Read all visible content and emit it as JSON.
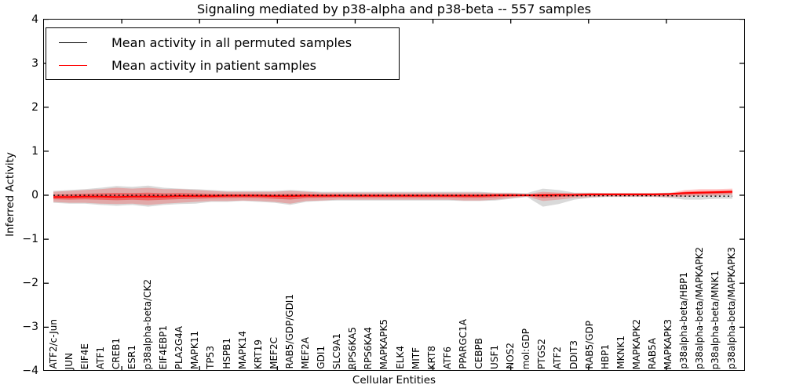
{
  "figure": {
    "background": "#ffffff",
    "axis_color": "#000000"
  },
  "legend": {
    "items": [
      {
        "label": "Mean activity in all permuted samples",
        "line_color": "#000000"
      },
      {
        "label": "Mean activity in patient samples",
        "line_color": "#ff0000"
      }
    ]
  },
  "chart_data": {
    "type": "line",
    "title": "Signaling mediated by p38-alpha and p38-beta -- 557 samples",
    "xlabel": "Cellular Entities",
    "ylabel": "Inferred Activity",
    "ylim": [
      -4,
      4
    ],
    "grid": false,
    "legend_position": "upper left",
    "yticks": [
      {
        "value": 4,
        "label": "4"
      },
      {
        "value": 3,
        "label": "3"
      },
      {
        "value": 2,
        "label": "2"
      },
      {
        "value": 1,
        "label": "1"
      },
      {
        "value": 0,
        "label": "0"
      },
      {
        "value": -1,
        "label": "−1"
      },
      {
        "value": -2,
        "label": "−2"
      },
      {
        "value": -3,
        "label": "−3"
      },
      {
        "value": -4,
        "label": "−4"
      }
    ],
    "top_axis_tick_count": 8,
    "categories": [
      "ATF2/c-Jun",
      "JUN",
      "EIF4E",
      "ATF1",
      "CREB1",
      "ESR1",
      "p38alpha-beta/CK2",
      "EIF4EBP1",
      "PLA2G4A",
      "MAPK11",
      "TP53",
      "HSPB1",
      "MAPK14",
      "KRT19",
      "MEF2C",
      "RAB5/GDP/GDI1",
      "MEF2A",
      "GDI1",
      "SLC9A1",
      "RPS6KA5",
      "RPS6KA4",
      "MAPKAPK5",
      "ELK4",
      "MITF",
      "KRT8",
      "ATF6",
      "PPARGC1A",
      "CEBPB",
      "USF1",
      "NOS2",
      "mol:GDP",
      "PTGS2",
      "ATF2",
      "DDIT3",
      "RAB5/GDP",
      "HBP1",
      "MKNK1",
      "MAPKAPK2",
      "RAB5A",
      "MAPKAPK3",
      "p38alpha-beta/HBP1",
      "p38alpha-beta/MAPKAPK2",
      "p38alpha-beta/MNK1",
      "p38alpha-beta/MAPKAPK3"
    ],
    "series": [
      {
        "name": "Mean activity in all permuted samples",
        "color": "#000000",
        "line_style": "dotted",
        "values": [
          -0.01,
          -0.01,
          -0.01,
          -0.01,
          -0.01,
          -0.01,
          -0.01,
          -0.01,
          -0.01,
          -0.01,
          -0.01,
          -0.01,
          -0.01,
          -0.01,
          -0.01,
          -0.01,
          -0.01,
          -0.01,
          -0.01,
          -0.01,
          -0.01,
          -0.01,
          -0.01,
          -0.01,
          -0.01,
          -0.01,
          -0.01,
          -0.01,
          -0.01,
          -0.01,
          -0.01,
          -0.02,
          -0.02,
          -0.02,
          -0.02,
          -0.02,
          -0.02,
          -0.02,
          -0.02,
          -0.02,
          -0.03,
          -0.03,
          -0.03,
          -0.03
        ]
      },
      {
        "name": "Mean activity in patient samples",
        "color": "#ff0000",
        "line_style": "solid",
        "values": [
          -0.05,
          -0.05,
          -0.04,
          -0.04,
          -0.05,
          -0.04,
          -0.04,
          -0.04,
          -0.03,
          -0.03,
          -0.03,
          -0.02,
          -0.02,
          -0.02,
          -0.03,
          -0.03,
          -0.02,
          -0.02,
          -0.02,
          -0.02,
          -0.02,
          -0.02,
          -0.02,
          -0.02,
          -0.02,
          -0.02,
          -0.02,
          -0.02,
          -0.01,
          -0.01,
          -0.01,
          -0.01,
          0.0,
          0.0,
          0.01,
          0.01,
          0.01,
          0.01,
          0.01,
          0.02,
          0.04,
          0.05,
          0.06,
          0.07
        ]
      }
    ],
    "bands": [
      {
        "name": "permuted-samples-std-envelope",
        "color": "#808080",
        "opacity": 0.3,
        "hi": [
          0.09,
          0.11,
          0.13,
          0.16,
          0.2,
          0.18,
          0.21,
          0.16,
          0.14,
          0.13,
          0.11,
          0.09,
          0.09,
          0.09,
          0.09,
          0.11,
          0.09,
          0.07,
          0.07,
          0.07,
          0.07,
          0.07,
          0.07,
          0.07,
          0.07,
          0.07,
          0.07,
          0.07,
          0.05,
          0.05,
          0.04,
          0.14,
          0.11,
          0.05,
          0.05,
          0.04,
          0.04,
          0.04,
          0.04,
          0.05,
          0.05,
          0.07,
          0.07,
          0.09
        ],
        "lo": [
          -0.18,
          -0.2,
          -0.2,
          -0.23,
          -0.25,
          -0.23,
          -0.27,
          -0.23,
          -0.21,
          -0.2,
          -0.16,
          -0.16,
          -0.14,
          -0.16,
          -0.18,
          -0.23,
          -0.16,
          -0.14,
          -0.13,
          -0.13,
          -0.13,
          -0.13,
          -0.13,
          -0.13,
          -0.13,
          -0.13,
          -0.14,
          -0.14,
          -0.13,
          -0.09,
          -0.05,
          -0.27,
          -0.21,
          -0.11,
          -0.07,
          -0.05,
          -0.05,
          -0.05,
          -0.05,
          -0.07,
          -0.11,
          -0.11,
          -0.09,
          -0.09
        ]
      },
      {
        "name": "patient-samples-std-envelope",
        "color": "#ff0000",
        "opacity": 0.22,
        "hi": [
          0.07,
          0.09,
          0.11,
          0.13,
          0.16,
          0.14,
          0.16,
          0.13,
          0.13,
          0.11,
          0.09,
          0.07,
          0.07,
          0.07,
          0.07,
          0.09,
          0.07,
          0.05,
          0.05,
          0.05,
          0.05,
          0.05,
          0.05,
          0.05,
          0.05,
          0.05,
          0.05,
          0.05,
          0.04,
          0.04,
          0.02,
          0.07,
          0.05,
          0.04,
          0.04,
          0.04,
          0.04,
          0.04,
          0.04,
          0.04,
          0.11,
          0.13,
          0.13,
          0.14
        ],
        "lo": [
          -0.16,
          -0.18,
          -0.18,
          -0.2,
          -0.21,
          -0.2,
          -0.23,
          -0.2,
          -0.18,
          -0.16,
          -0.14,
          -0.14,
          -0.13,
          -0.14,
          -0.16,
          -0.2,
          -0.14,
          -0.13,
          -0.11,
          -0.11,
          -0.11,
          -0.11,
          -0.11,
          -0.11,
          -0.11,
          -0.11,
          -0.13,
          -0.13,
          -0.11,
          -0.07,
          -0.04,
          -0.14,
          -0.11,
          -0.07,
          -0.05,
          -0.04,
          -0.04,
          -0.04,
          -0.04,
          -0.05,
          -0.04,
          -0.02,
          -0.02,
          0.0
        ]
      },
      {
        "name": "patient-samples-inner-envelope",
        "color": "#ff0000",
        "opacity": 0.38,
        "derive_from_band": 1,
        "derive_from_series": 1,
        "scale": 0.45
      }
    ]
  }
}
